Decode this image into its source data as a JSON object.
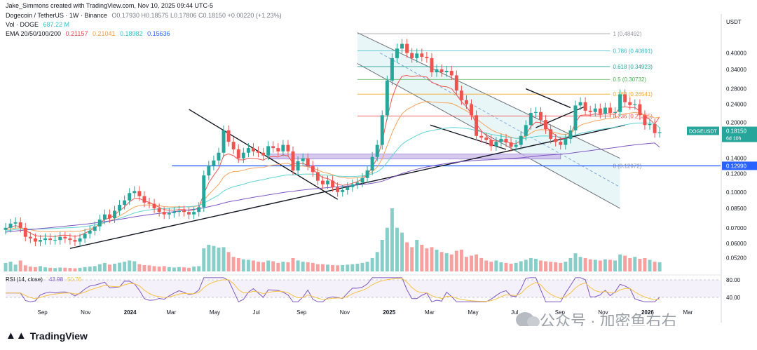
{
  "header": {
    "attribution": "Jake_Simmons created with TradingView.com, Nov 10, 2025 09:44 UTC-5",
    "symbol": "Dogecoin / TetherUS · 1W · Binance",
    "ohlc": "O0.17930 H0.18575 L0.17806 C0.18150 +0.00220 (+1.23%)",
    "vol_label": "Vol · DOGE",
    "vol_value": "687.22 M",
    "ema_label": "EMA 20/50/100/200",
    "ema_values": [
      "0.21157",
      "0.21041",
      "0.18982",
      "0.15636"
    ]
  },
  "brand": "TradingView",
  "watermark": "公众号 · 加密鱼右右",
  "colors": {
    "up": "#26a69a",
    "down": "#ef5350",
    "ema20": "#ef5350",
    "ema50": "#f7a35c",
    "ema100": "#5fd4d4",
    "ema200": "#7e57c2",
    "support": "#2962ff",
    "channel_fill": "#d7eef0",
    "demand_zone": "#c9b8ea"
  },
  "chart_data": {
    "type": "line",
    "title": "Dogecoin / TetherUS · 1W · Binance",
    "currency_label": "USDT",
    "y_scale": "log",
    "ylim": [
      0.045,
      0.55
    ],
    "y_ticks": [
      "0.40000",
      "0.34000",
      "0.28000",
      "0.24000",
      "0.20000",
      "0.14000",
      "0.12000",
      "0.10000",
      "0.08500",
      "0.07000",
      "0.06000",
      "0.05200"
    ],
    "y_tick_values": [
      0.4,
      0.34,
      0.28,
      0.24,
      0.2,
      0.14,
      0.12,
      0.1,
      0.085,
      0.07,
      0.06,
      0.052
    ],
    "x_ticks": [
      "Sep",
      "Nov",
      "2024",
      "Mar",
      "May",
      "Jul",
      "Sep",
      "Nov",
      "2025",
      "Mar",
      "May",
      "Jul",
      "Sep",
      "Nov",
      "2026",
      "Mar"
    ],
    "x_tick_dates": [
      "2023-09-01",
      "2023-11-01",
      "2024-01-01",
      "2024-03-01",
      "2024-05-01",
      "2024-07-01",
      "2024-09-01",
      "2024-11-01",
      "2025-01-01",
      "2025-03-01",
      "2025-05-01",
      "2025-07-01",
      "2025-09-01",
      "2025-11-01",
      "2026-01-01",
      "2026-03-01"
    ],
    "x_range": [
      "2023-07-10",
      "2026-04-15"
    ],
    "close_series": {
      "start": "2023-07-10",
      "interval_days": 7,
      "values": [
        0.07,
        0.073,
        0.074,
        0.07,
        0.064,
        0.063,
        0.061,
        0.062,
        0.063,
        0.062,
        0.062,
        0.064,
        0.063,
        0.062,
        0.061,
        0.063,
        0.066,
        0.068,
        0.071,
        0.076,
        0.08,
        0.077,
        0.083,
        0.088,
        0.092,
        0.099,
        0.101,
        0.096,
        0.09,
        0.089,
        0.085,
        0.082,
        0.08,
        0.081,
        0.082,
        0.083,
        0.082,
        0.08,
        0.082,
        0.086,
        0.118,
        0.13,
        0.137,
        0.148,
        0.185,
        0.165,
        0.153,
        0.14,
        0.148,
        0.155,
        0.15,
        0.148,
        0.144,
        0.158,
        0.155,
        0.15,
        0.16,
        0.15,
        0.124,
        0.136,
        0.14,
        0.13,
        0.122,
        0.112,
        0.108,
        0.112,
        0.105,
        0.1,
        0.102,
        0.105,
        0.108,
        0.11,
        0.115,
        0.124,
        0.142,
        0.16,
        0.215,
        0.304,
        0.38,
        0.418,
        0.438,
        0.4,
        0.38,
        0.398,
        0.385,
        0.38,
        0.33,
        0.34,
        0.33,
        0.335,
        0.32,
        0.275,
        0.25,
        0.24,
        0.215,
        0.175,
        0.172,
        0.168,
        0.158,
        0.165,
        0.17,
        0.164,
        0.157,
        0.16,
        0.175,
        0.195,
        0.22,
        0.222,
        0.205,
        0.187,
        0.17,
        0.165,
        0.16,
        0.17,
        0.185,
        0.237,
        0.245,
        0.225,
        0.222,
        0.23,
        0.218,
        0.232,
        0.22,
        0.222,
        0.265,
        0.245,
        0.238,
        0.24,
        0.215,
        0.195,
        0.197,
        0.18,
        0.1815
      ]
    },
    "series": [
      {
        "name": "EMA 20",
        "last": 0.21157
      },
      {
        "name": "EMA 50",
        "last": 0.21041
      },
      {
        "name": "EMA 100",
        "last": 0.18982
      },
      {
        "name": "EMA 200",
        "last": 0.15636
      }
    ],
    "volume_series": {
      "label": "Vol · DOGE",
      "last": "687.22 M",
      "values": [
        35,
        40,
        28,
        45,
        25,
        20,
        18,
        22,
        17,
        15,
        14,
        16,
        15,
        14,
        13,
        15,
        18,
        20,
        22,
        30,
        35,
        28,
        32,
        36,
        40,
        45,
        42,
        30,
        26,
        25,
        22,
        20,
        22,
        18,
        16,
        18,
        17,
        15,
        20,
        22,
        95,
        110,
        105,
        98,
        100,
        80,
        60,
        55,
        50,
        48,
        45,
        40,
        38,
        45,
        42,
        35,
        40,
        38,
        55,
        45,
        40,
        38,
        35,
        30,
        30,
        28,
        26,
        25,
        26,
        28,
        30,
        32,
        35,
        40,
        55,
        80,
        130,
        180,
        260,
        180,
        160,
        120,
        100,
        130,
        110,
        95,
        100,
        90,
        80,
        75,
        70,
        85,
        90,
        60,
        65,
        70,
        55,
        45,
        40,
        45,
        38,
        35,
        32,
        35,
        42,
        48,
        55,
        52,
        45,
        42,
        40,
        38,
        35,
        40,
        55,
        75,
        60,
        55,
        50,
        48,
        45,
        50,
        48,
        45,
        70,
        65,
        55,
        60,
        52,
        55,
        48,
        40,
        38
      ]
    },
    "rsi": {
      "label": "RSI (14, close)",
      "value": "43.98",
      "ma_value": "50.76",
      "levels": [
        "80.00",
        "40.00"
      ]
    },
    "fibonacci": [
      {
        "label": "1 (0.48492)",
        "value": 0.48492
      },
      {
        "label": "0.786 (0.40891)",
        "value": 0.40891
      },
      {
        "label": "0.618 (0.34923)",
        "value": 0.34923
      },
      {
        "label": "0.5 (0.30732)",
        "value": 0.30732
      },
      {
        "label": "0.382 (0.26541)",
        "value": 0.26541
      },
      {
        "label": "0.236 (0.21355)",
        "value": 0.21355
      },
      {
        "label": "0 (0.12972)",
        "value": 0.12972
      }
    ],
    "price_labels": [
      {
        "label": "DOGEUSDT",
        "value": "0.18150",
        "sub": "6d 10h"
      },
      {
        "label": "",
        "value": "0.12990"
      }
    ],
    "support_level": 0.1299
  }
}
